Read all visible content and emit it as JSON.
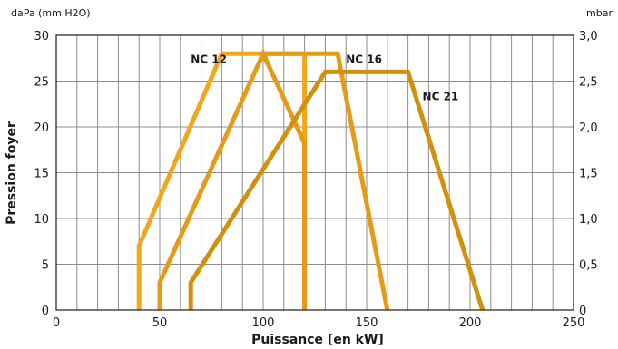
{
  "chart_data": {
    "type": "line",
    "xlabel": "Puissance [en kW]",
    "ylabel": "Pression foyer",
    "y_unit_left": "daPa (mm H2O)",
    "y_unit_right": "mbar",
    "xlim": [
      0,
      250
    ],
    "ylim": [
      0,
      30
    ],
    "x_ticks": [
      "0",
      "50",
      "100",
      "150",
      "200",
      "250"
    ],
    "y_ticks_left": [
      "0",
      "5",
      "10",
      "15",
      "20",
      "25",
      "30"
    ],
    "y_ticks_right": [
      "0",
      "0,5",
      "1,0",
      "1,5",
      "2,0",
      "2,5",
      "3,0"
    ],
    "grid": true,
    "series": [
      {
        "name": "NC 12",
        "color": "#f2a61c",
        "points": [
          [
            40,
            0
          ],
          [
            40,
            7
          ],
          [
            80,
            28
          ],
          [
            120,
            28
          ],
          [
            120,
            0
          ]
        ]
      },
      {
        "name": "NC 16",
        "color": "#e59a18",
        "points": [
          [
            50,
            0
          ],
          [
            50,
            3
          ],
          [
            100,
            28
          ],
          [
            120,
            18.2
          ],
          [
            120,
            0
          ]
        ]
      },
      {
        "name": "NC 16",
        "color": "#e59a18",
        "points": [
          [
            100,
            28
          ],
          [
            136,
            28
          ],
          [
            160,
            0
          ]
        ]
      },
      {
        "name": "NC 21",
        "color": "#d2900f",
        "points": [
          [
            65,
            0
          ],
          [
            65,
            3
          ],
          [
            130,
            26
          ],
          [
            170,
            26
          ],
          [
            206,
            0
          ]
        ]
      }
    ],
    "series_labels": [
      {
        "text": "NC 12",
        "x": 65,
        "y": 27.4
      },
      {
        "text": "NC 16",
        "x": 140,
        "y": 27.4
      },
      {
        "text": "NC 21",
        "x": 177,
        "y": 23.3
      }
    ]
  }
}
